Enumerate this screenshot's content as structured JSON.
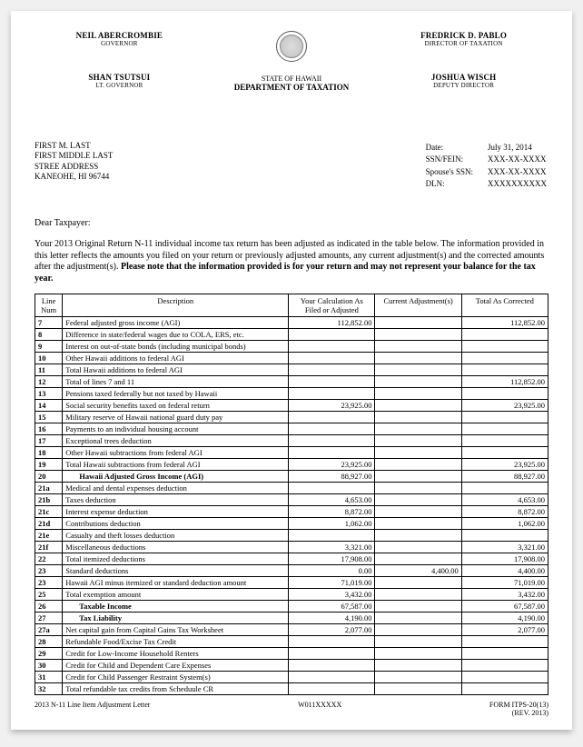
{
  "header": {
    "left": {
      "name": "NEIL ABERCROMBIE",
      "title": "GOVERNOR"
    },
    "left2": {
      "name": "SHAN TSUTSUI",
      "title": "LT. GOVERNOR"
    },
    "right": {
      "name": "FREDRICK D. PABLO",
      "title": "DIRECTOR OF TAXATION"
    },
    "right2": {
      "name": "JOSHUA WISCH",
      "title": "DEPUTY DIRECTOR"
    },
    "agency1": "STATE OF HAWAII",
    "agency2": "DEPARTMENT OF TAXATION"
  },
  "addressee": {
    "line1": "FIRST M. LAST",
    "line2": "FIRST MIDDLE LAST",
    "line3": "STREE ADDRESS",
    "line4": "KANEOHE, HI 96744"
  },
  "meta": {
    "date_label": "Date:",
    "date_value": "July 31, 2014",
    "ssn_label": "SSN/FEIN:",
    "ssn_value": "XXX-XX-XXXX",
    "spouse_label": "Spouse's SSN:",
    "spouse_value": "XXX-XX-XXXX",
    "dln_label": "DLN:",
    "dln_value": "XXXXXXXXXX"
  },
  "salutation": "Dear Taxpayer:",
  "body": {
    "plain": "Your 2013 Original Return N-11 individual income tax return has been adjusted as indicated in the table below.  The information provided in this letter reflects the amounts you filed on your return or previously adjusted amounts, any current adjustment(s) and the corrected amounts after the adjustment(s).  ",
    "bold": "Please note that the information provided is for your return and may not represent your balance for the tax year."
  },
  "table": {
    "headers": {
      "line": "Line Num",
      "desc": "Description",
      "filed": "Your Calculation As Filed or Adjusted",
      "adj": "Current Adjustment(s)",
      "corr": "Total As Corrected"
    },
    "rows": [
      {
        "line": "7",
        "desc": "Federal adjusted gross income (AGI)",
        "filed": "112,852.00",
        "adj": "",
        "corr": "112,852.00"
      },
      {
        "line": "8",
        "desc": "Difference in state/federal wages due to COLA, ERS, etc.",
        "filed": "",
        "adj": "",
        "corr": ""
      },
      {
        "line": "9",
        "desc": "Interest on out-of-state bonds (including municipal bonds)",
        "filed": "",
        "adj": "",
        "corr": ""
      },
      {
        "line": "10",
        "desc": "Other Hawaii additions to federal AGI",
        "filed": "",
        "adj": "",
        "corr": ""
      },
      {
        "line": "11",
        "desc": "Total Hawaii additions to federal AGI",
        "filed": "",
        "adj": "",
        "corr": ""
      },
      {
        "line": "12",
        "desc": "Total of lines 7 and 11",
        "filed": "",
        "adj": "",
        "corr": "112,852.00"
      },
      {
        "line": "13",
        "desc": "Pensions taxed federally but not taxed by Hawaii",
        "filed": "",
        "adj": "",
        "corr": ""
      },
      {
        "line": "14",
        "desc": "Social security benefits taxed on federal return",
        "filed": "23,925.00",
        "adj": "",
        "corr": "23,925.00"
      },
      {
        "line": "15",
        "desc": "Military reserve of Hawaii national guard duty pay",
        "filed": "",
        "adj": "",
        "corr": ""
      },
      {
        "line": "16",
        "desc": "Payments to an individual housing account",
        "filed": "",
        "adj": "",
        "corr": ""
      },
      {
        "line": "17",
        "desc": "Exceptional trees deduction",
        "filed": "",
        "adj": "",
        "corr": ""
      },
      {
        "line": "18",
        "desc": "Other Hawaii subtractions from federal AGI",
        "filed": "",
        "adj": "",
        "corr": ""
      },
      {
        "line": "19",
        "desc": "Total Hawaii subtractions from federal AGI",
        "filed": "23,925.00",
        "adj": "",
        "corr": "23,925.00"
      },
      {
        "line": "20",
        "desc": "Hawaii Adjusted Gross  Income  (AGI)",
        "bold": true,
        "indent": true,
        "filed": "88,927.00",
        "adj": "",
        "corr": "88,927.00"
      },
      {
        "line": "21a",
        "desc": "Medical and dental expenses deduction",
        "filed": "",
        "adj": "",
        "corr": ""
      },
      {
        "line": "21b",
        "desc": "Taxes deduction",
        "filed": "4,653.00",
        "adj": "",
        "corr": "4,653.00"
      },
      {
        "line": "21c",
        "desc": "Interest expense deduction",
        "filed": "8,872.00",
        "adj": "",
        "corr": "8,872.00"
      },
      {
        "line": "21d",
        "desc": "Contributions deduction",
        "filed": "1,062.00",
        "adj": "",
        "corr": "1,062.00"
      },
      {
        "line": "21e",
        "desc": "Casualty and theft losses deduction",
        "filed": "",
        "adj": "",
        "corr": ""
      },
      {
        "line": "21f",
        "desc": "Miscellaneous deductions",
        "filed": "3,321.00",
        "adj": "",
        "corr": "3,321.00"
      },
      {
        "line": "22",
        "desc": "Total itemized deductions",
        "filed": "17,908.00",
        "adj": "",
        "corr": "17,908.00"
      },
      {
        "line": "23",
        "desc": "Standard deductions",
        "filed": "0.00",
        "adj": "4,400.00",
        "corr": "4,400.00"
      },
      {
        "line": "23",
        "desc": "Hawaii AGI minus itemized or standard deduction amount",
        "filed": "71,019.00",
        "adj": "",
        "corr": "71,019.00"
      },
      {
        "line": "25",
        "desc": "Total exemption amount",
        "filed": "3,432.00",
        "adj": "",
        "corr": "3,432.00"
      },
      {
        "line": "26",
        "desc": "Taxable Income",
        "bold": true,
        "indent": true,
        "filed": "67,587.00",
        "adj": "",
        "corr": "67,587.00"
      },
      {
        "line": "27",
        "desc": "Tax Liability",
        "bold": true,
        "indent": true,
        "filed": "4,190.00",
        "adj": "",
        "corr": "4,190.00"
      },
      {
        "line": "27a",
        "desc": "Net capital gain from Capital Gains Tax Worksheet",
        "filed": "2,077.00",
        "adj": "",
        "corr": "2,077.00"
      },
      {
        "line": "28",
        "desc": "Refundable Food/Excise Tax Credit",
        "filed": "",
        "adj": "",
        "corr": ""
      },
      {
        "line": "29",
        "desc": "Credit for Low-Income Household Renters",
        "filed": "",
        "adj": "",
        "corr": ""
      },
      {
        "line": "30",
        "desc": "Credit for Child and Dependent Care Expenses",
        "filed": "",
        "adj": "",
        "corr": ""
      },
      {
        "line": "31",
        "desc": "Credit for Child Passenger Restraint System(s)",
        "filed": "",
        "adj": "",
        "corr": ""
      },
      {
        "line": "32",
        "desc": "Total  refundable tax credits from Scheduule CR",
        "filed": "",
        "adj": "",
        "corr": ""
      }
    ]
  },
  "footer": {
    "left": "2013 N-11 Line Item Adjustment Letter",
    "center": "W011XXXXX",
    "right1": "FORM ITPS-20(13)",
    "right2": "(REV. 2013)"
  }
}
